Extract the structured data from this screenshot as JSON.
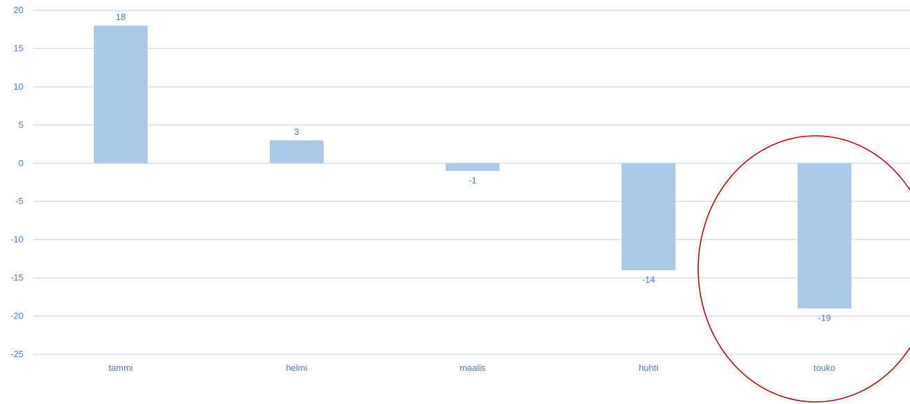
{
  "chart_data": {
    "type": "bar",
    "categories": [
      "tammi",
      "helmi",
      "maalis",
      "huhti",
      "touko"
    ],
    "values": [
      18,
      3,
      -1,
      -14,
      -19
    ],
    "data_labels": [
      "18",
      "3",
      "-1",
      "-14",
      "-19"
    ],
    "yticks": [
      20,
      15,
      10,
      5,
      0,
      -5,
      -10,
      -15,
      -20,
      -25
    ],
    "ytick_labels": [
      "20",
      "15",
      "10",
      "5",
      "0",
      "-5",
      "-10",
      "-15",
      "-20",
      "-25"
    ],
    "ylim": [
      -25,
      20
    ],
    "grid": true,
    "legend": "none",
    "annotation": {
      "type": "ellipse",
      "target_category": "touko"
    }
  },
  "colors": {
    "bar": "#a9c9e7",
    "gridline": "#c6daf1",
    "label_text": "#4a78c9",
    "annotation": "#b30000",
    "background": "#ffffff"
  }
}
